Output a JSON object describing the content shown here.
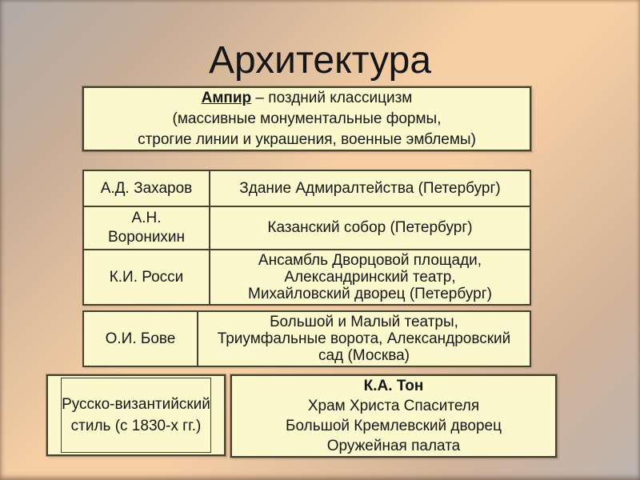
{
  "title": "Архитектура",
  "ampir_box": {
    "term": "Ампир",
    "term_suffix": " – поздний классицизм",
    "line2": "(массивные монументальные формы,",
    "line3": "строгие линии и украшения, военные эмблемы)"
  },
  "architects_table": {
    "rows": [
      {
        "name_line1": "А.Д. Захаров",
        "work_line1": "Здание Адмиралтейства (Петербург)"
      },
      {
        "name_line1": "А.Н.",
        "name_line2": "Воронихин",
        "work_line1": "Казанский собор (Петербург)"
      },
      {
        "name_line1": "К.И. Росси",
        "work_line1": "Ансамбль Дворцовой площади,",
        "work_line2": "Александринский театр,",
        "work_line3": "Михайловский дворец (Петербург)"
      }
    ]
  },
  "bove_box": {
    "name": "О.И. Бове",
    "work_line1": "Большой и Малый театры,",
    "work_line2": "Триумфальные ворота, Александровский",
    "work_line3": "сад (Москва)"
  },
  "bottom_left_box": {
    "line1": "Русско-византийский",
    "line2": "стиль (с 1830-х гг.)"
  },
  "ton_box": {
    "name": "К.А. Тон",
    "work_line1": "Храм Христа Спасителя",
    "work_line2": "Большой Кремлевский дворец",
    "work_line3": "Оружейная палата"
  },
  "colors": {
    "box_fill": "#fbf8cd",
    "box_border": "#45422f",
    "text": "#161616",
    "background_center": "#f6cfa4",
    "background_corners": "#b5afab"
  }
}
